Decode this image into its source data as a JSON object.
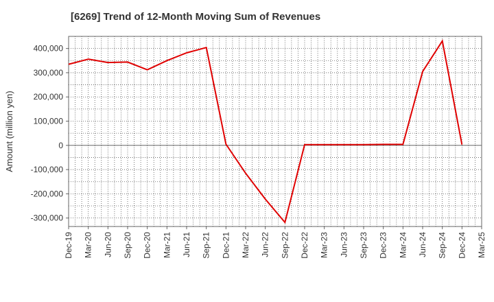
{
  "chart_data": {
    "type": "line",
    "title": "[6269]  Trend of 12-Month Moving Sum of Revenues",
    "xlabel": "",
    "ylabel": "Amount (million yen)",
    "ylim": [
      -335000,
      450000
    ],
    "yticks": [
      400000,
      300000,
      200000,
      100000,
      0,
      -100000,
      -200000,
      -300000
    ],
    "ytick_labels": [
      "400,000",
      "300,000",
      "200,000",
      "100,000",
      "0",
      "-100,000",
      "-200,000",
      "-300,000"
    ],
    "x_categories": [
      "Dec-19",
      "Mar-20",
      "Jun-20",
      "Sep-20",
      "Dec-20",
      "Mar-21",
      "Jun-21",
      "Sep-21",
      "Dec-21",
      "Mar-22",
      "Jun-22",
      "Sep-22",
      "Dec-22",
      "Mar-23",
      "Jun-23",
      "Sep-23",
      "Dec-23",
      "Mar-24",
      "Jun-24",
      "Sep-24",
      "Dec-24",
      "Mar-25"
    ],
    "grid": true,
    "series": [
      {
        "color": "#e00000",
        "x": [
          "Dec-19",
          "Mar-20",
          "Jun-20",
          "Sep-20",
          "Dec-20",
          "Mar-21",
          "Jun-21",
          "Sep-21",
          "Dec-21",
          "Mar-22",
          "Jun-22",
          "Sep-22",
          "Dec-22",
          "Mar-23",
          "Jun-23",
          "Sep-23",
          "Dec-23",
          "Mar-24",
          "Jun-24",
          "Sep-24",
          "Dec-24"
        ],
        "values": [
          335000,
          356000,
          342000,
          344000,
          312000,
          350000,
          382000,
          404000,
          5000,
          -115000,
          -222000,
          -318000,
          3000,
          3000,
          3000,
          3000,
          4000,
          4000,
          305000,
          431000,
          3000
        ]
      }
    ]
  }
}
